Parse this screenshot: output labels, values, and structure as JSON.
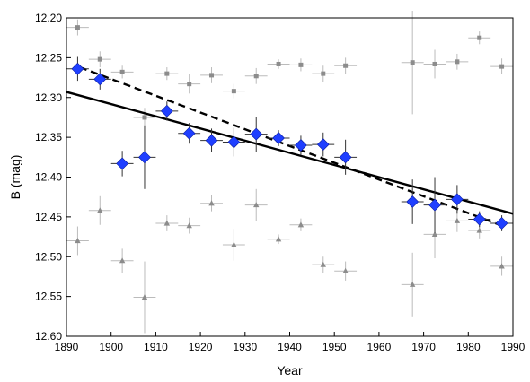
{
  "chart_data": {
    "type": "scatter",
    "title": "",
    "xlabel": "Year",
    "ylabel": "B (mag)",
    "xlim": [
      1890,
      1990
    ],
    "ylim": [
      12.2,
      12.6
    ],
    "y_inverted": true,
    "xticks": [
      "1890",
      "1900",
      "1910",
      "1920",
      "1930",
      "1940",
      "1950",
      "1960",
      "1970",
      "1980",
      "1990"
    ],
    "yticks": [
      "12.20",
      "12.25",
      "12.30",
      "12.35",
      "12.40",
      "12.45",
      "12.50",
      "12.55",
      "12.60"
    ],
    "grid": false,
    "legend": "none",
    "colors": {
      "target": "#1f3fff",
      "comparison_upper": "#8c8c8c",
      "comparison_lower": "#8c8c8c",
      "errorbar": "#333333",
      "comparison_errorbar": "#bbbbbb",
      "fit_line": "#000000"
    },
    "series": [
      {
        "marker": "diamond",
        "color": "#1f3fff",
        "points": [
          {
            "x": 1892.5,
            "y": 12.264,
            "ex": 2.5,
            "ey": 0.015
          },
          {
            "x": 1897.5,
            "y": 12.277,
            "ex": 2.5,
            "ey": 0.013
          },
          {
            "x": 1902.5,
            "y": 12.383,
            "ex": 2.5,
            "ey": 0.016
          },
          {
            "x": 1907.5,
            "y": 12.375,
            "ex": 2.5,
            "ey": 0.04
          },
          {
            "x": 1912.5,
            "y": 12.317,
            "ex": 2.5,
            "ey": 0.012
          },
          {
            "x": 1917.5,
            "y": 12.345,
            "ex": 2.5,
            "ey": 0.013
          },
          {
            "x": 1922.5,
            "y": 12.354,
            "ex": 2.5,
            "ey": 0.015
          },
          {
            "x": 1927.5,
            "y": 12.356,
            "ex": 2.5,
            "ey": 0.018
          },
          {
            "x": 1932.5,
            "y": 12.346,
            "ex": 2.5,
            "ey": 0.022
          },
          {
            "x": 1937.5,
            "y": 12.351,
            "ex": 2.5,
            "ey": 0.01
          },
          {
            "x": 1942.5,
            "y": 12.36,
            "ex": 2.5,
            "ey": 0.012
          },
          {
            "x": 1947.5,
            "y": 12.359,
            "ex": 2.5,
            "ey": 0.015
          },
          {
            "x": 1952.5,
            "y": 12.375,
            "ex": 2.5,
            "ey": 0.022
          },
          {
            "x": 1967.5,
            "y": 12.431,
            "ex": 2.5,
            "ey": 0.028
          },
          {
            "x": 1972.5,
            "y": 12.435,
            "ex": 2.5,
            "ey": 0.035
          },
          {
            "x": 1977.5,
            "y": 12.428,
            "ex": 2.5,
            "ey": 0.018
          },
          {
            "x": 1982.5,
            "y": 12.453,
            "ex": 2.5,
            "ey": 0.01
          },
          {
            "x": 1987.5,
            "y": 12.458,
            "ex": 2.5,
            "ey": 0.01
          }
        ]
      },
      {
        "marker": "square",
        "color": "#8c8c8c",
        "points": [
          {
            "x": 1892.5,
            "y": 12.212,
            "ex": 2.5,
            "ey": 0.01
          },
          {
            "x": 1897.5,
            "y": 12.252,
            "ex": 2.5,
            "ey": 0.01
          },
          {
            "x": 1902.5,
            "y": 12.268,
            "ex": 2.5,
            "ey": 0.008
          },
          {
            "x": 1907.5,
            "y": 12.325,
            "ex": 2.5,
            "ey": 0.012
          },
          {
            "x": 1912.5,
            "y": 12.27,
            "ex": 2.5,
            "ey": 0.008
          },
          {
            "x": 1917.5,
            "y": 12.283,
            "ex": 2.5,
            "ey": 0.012
          },
          {
            "x": 1922.5,
            "y": 12.272,
            "ex": 2.5,
            "ey": 0.01
          },
          {
            "x": 1927.5,
            "y": 12.292,
            "ex": 2.5,
            "ey": 0.009
          },
          {
            "x": 1932.5,
            "y": 12.273,
            "ex": 2.5,
            "ey": 0.01
          },
          {
            "x": 1937.5,
            "y": 12.258,
            "ex": 2.5,
            "ey": 0.006
          },
          {
            "x": 1942.5,
            "y": 12.259,
            "ex": 2.5,
            "ey": 0.008
          },
          {
            "x": 1947.5,
            "y": 12.27,
            "ex": 2.5,
            "ey": 0.01
          },
          {
            "x": 1952.5,
            "y": 12.26,
            "ex": 2.5,
            "ey": 0.01
          },
          {
            "x": 1967.5,
            "y": 12.256,
            "ex": 2.5,
            "ey": 0.065
          },
          {
            "x": 1972.5,
            "y": 12.258,
            "ex": 2.5,
            "ey": 0.018
          },
          {
            "x": 1977.5,
            "y": 12.255,
            "ex": 2.5,
            "ey": 0.01
          },
          {
            "x": 1982.5,
            "y": 12.225,
            "ex": 2.5,
            "ey": 0.008
          },
          {
            "x": 1987.5,
            "y": 12.261,
            "ex": 2.5,
            "ey": 0.01
          }
        ]
      },
      {
        "marker": "triangle",
        "color": "#8c8c8c",
        "points": [
          {
            "x": 1892.5,
            "y": 12.48,
            "ex": 2.5,
            "ey": 0.018
          },
          {
            "x": 1897.5,
            "y": 12.442,
            "ex": 2.5,
            "ey": 0.018
          },
          {
            "x": 1902.5,
            "y": 12.505,
            "ex": 2.5,
            "ey": 0.015
          },
          {
            "x": 1907.5,
            "y": 12.551,
            "ex": 2.5,
            "ey": 0.045
          },
          {
            "x": 1912.5,
            "y": 12.458,
            "ex": 2.5,
            "ey": 0.01
          },
          {
            "x": 1917.5,
            "y": 12.461,
            "ex": 2.5,
            "ey": 0.01
          },
          {
            "x": 1922.5,
            "y": 12.433,
            "ex": 2.5,
            "ey": 0.01
          },
          {
            "x": 1927.5,
            "y": 12.485,
            "ex": 2.5,
            "ey": 0.02
          },
          {
            "x": 1932.5,
            "y": 12.435,
            "ex": 2.5,
            "ey": 0.02
          },
          {
            "x": 1937.5,
            "y": 12.478,
            "ex": 2.5,
            "ey": 0.006
          },
          {
            "x": 1942.5,
            "y": 12.46,
            "ex": 2.5,
            "ey": 0.008
          },
          {
            "x": 1947.5,
            "y": 12.51,
            "ex": 2.5,
            "ey": 0.01
          },
          {
            "x": 1952.5,
            "y": 12.518,
            "ex": 2.5,
            "ey": 0.012
          },
          {
            "x": 1967.5,
            "y": 12.535,
            "ex": 2.5,
            "ey": 0.04
          },
          {
            "x": 1972.5,
            "y": 12.472,
            "ex": 2.5,
            "ey": 0.03
          },
          {
            "x": 1977.5,
            "y": 12.455,
            "ex": 2.5,
            "ey": 0.014
          },
          {
            "x": 1982.5,
            "y": 12.467,
            "ex": 2.5,
            "ey": 0.01
          },
          {
            "x": 1987.5,
            "y": 12.512,
            "ex": 2.5,
            "ey": 0.012
          }
        ]
      }
    ],
    "lines": [
      {
        "style": "solid",
        "x": [
          1890,
          1990
        ],
        "y": [
          12.293,
          12.446
        ]
      },
      {
        "style": "dashed",
        "x": [
          1893,
          1988
        ],
        "y": [
          12.262,
          12.462
        ]
      }
    ]
  }
}
